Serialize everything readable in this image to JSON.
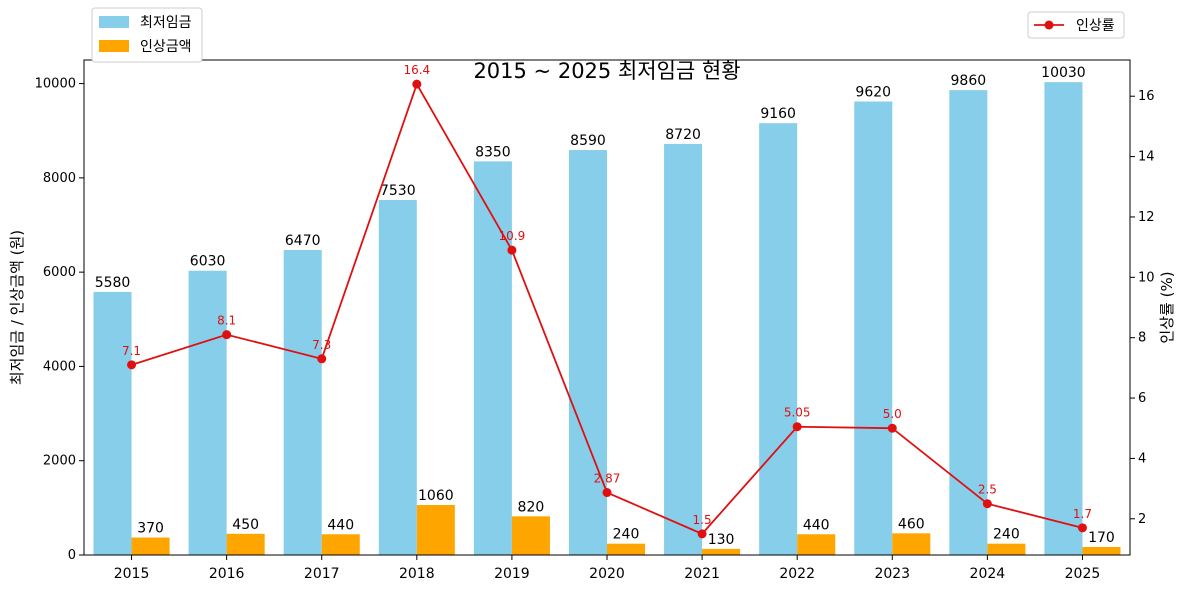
{
  "chart_data": {
    "type": "bar",
    "title": "2015 ~ 2025 최저임금 현황",
    "xlabel": "",
    "ylabel": "최저임금 / 인상금액 (원)",
    "y2label": "인상률 (%)",
    "categories": [
      "2015",
      "2016",
      "2017",
      "2018",
      "2019",
      "2020",
      "2021",
      "2022",
      "2023",
      "2024",
      "2025"
    ],
    "ylim": [
      0,
      10500
    ],
    "y2lim": [
      0.8,
      17.2
    ],
    "yticks": [
      0,
      2000,
      4000,
      6000,
      8000,
      10000
    ],
    "y2ticks": [
      2,
      4,
      6,
      8,
      10,
      12,
      14,
      16
    ],
    "series": [
      {
        "name": "최저임금",
        "kind": "bar",
        "color": "#87ceeb",
        "values": [
          5580,
          6030,
          6470,
          7530,
          8350,
          8590,
          8720,
          9160,
          9620,
          9860,
          10030
        ]
      },
      {
        "name": "인상금액",
        "kind": "bar",
        "color": "#ffa500",
        "values": [
          370,
          450,
          440,
          1060,
          820,
          240,
          130,
          440,
          460,
          240,
          170
        ]
      },
      {
        "name": "인상률",
        "kind": "line",
        "axis": "right",
        "color": "#e01010",
        "values": [
          7.1,
          8.1,
          7.3,
          16.4,
          10.9,
          2.87,
          1.5,
          5.05,
          5.0,
          2.5,
          1.7
        ],
        "labels": [
          "7.1",
          "8.1",
          "7.3",
          "16.4",
          "10.9",
          "2.87",
          "1.5",
          "5.05",
          "5.0",
          "2.5",
          "1.7"
        ]
      }
    ],
    "legend": {
      "bars": "top-left outside",
      "line": "top-right outside"
    },
    "grid": false
  }
}
